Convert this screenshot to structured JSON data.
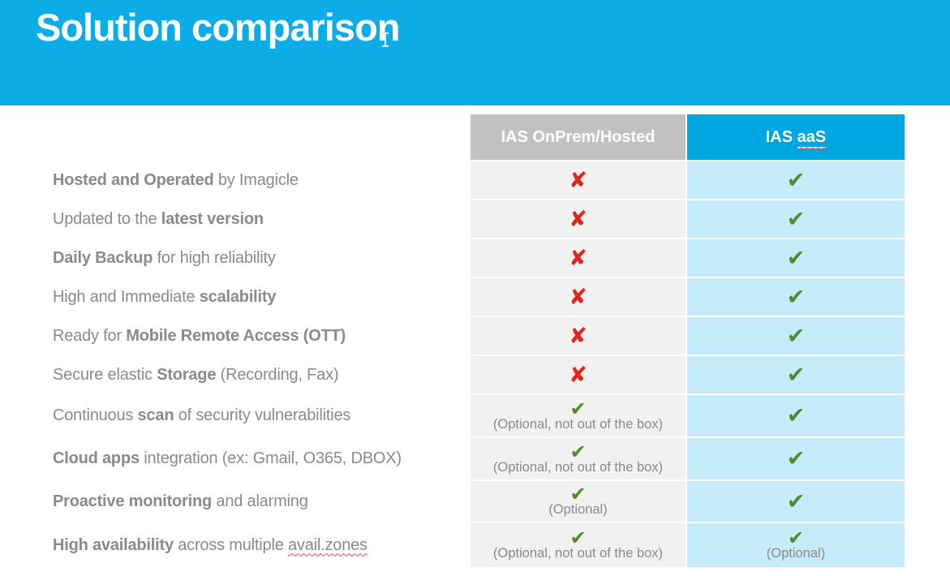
{
  "slide": {
    "title": "Solution comparison"
  },
  "colors": {
    "band_blue": "#0cace6",
    "header_blue": "#00a6df",
    "header_gray": "#c1c1c1",
    "cell_light_gray": "#f2f1f1",
    "cell_light_blue": "#c6ebfb",
    "label_gray": "#8a8a8d",
    "check_green": "#4f8c2e",
    "cross_red": "#e1251b",
    "squiggle_red": "#e8433c"
  },
  "icons": {
    "check": "✔",
    "cross": "✘"
  },
  "table": {
    "header": {
      "onprem": "IAS OnPrem/Hosted",
      "aas_prefix": "IAS ",
      "aas_underlined": "aaS"
    },
    "rows": [
      {
        "label": [
          {
            "text": "Hosted and Operated",
            "bold": true
          },
          {
            "text": " by Imagicle",
            "bold": false
          }
        ],
        "onprem": {
          "mark": "cross",
          "note": ""
        },
        "aas": {
          "mark": "check",
          "note": ""
        }
      },
      {
        "label": [
          {
            "text": "Updated to the ",
            "bold": false
          },
          {
            "text": "latest version",
            "bold": true
          }
        ],
        "onprem": {
          "mark": "cross",
          "note": ""
        },
        "aas": {
          "mark": "check",
          "note": ""
        }
      },
      {
        "label": [
          {
            "text": "Daily Backup",
            "bold": true
          },
          {
            "text": " for high reliability",
            "bold": false
          }
        ],
        "onprem": {
          "mark": "cross",
          "note": ""
        },
        "aas": {
          "mark": "check",
          "note": ""
        }
      },
      {
        "label": [
          {
            "text": "High and Immediate ",
            "bold": false
          },
          {
            "text": "scalability",
            "bold": true
          }
        ],
        "onprem": {
          "mark": "cross",
          "note": ""
        },
        "aas": {
          "mark": "check",
          "note": ""
        }
      },
      {
        "label": [
          {
            "text": "Ready for ",
            "bold": false
          },
          {
            "text": "Mobile Remote Access (OTT)",
            "bold": true
          }
        ],
        "onprem": {
          "mark": "cross",
          "note": ""
        },
        "aas": {
          "mark": "check",
          "note": ""
        }
      },
      {
        "label": [
          {
            "text": "Secure elastic ",
            "bold": false
          },
          {
            "text": "Storage",
            "bold": true
          },
          {
            "text": " (Recording, Fax)",
            "bold": false
          }
        ],
        "onprem": {
          "mark": "cross",
          "note": ""
        },
        "aas": {
          "mark": "check",
          "note": ""
        }
      },
      {
        "label": [
          {
            "text": "Continuous ",
            "bold": false
          },
          {
            "text": "scan",
            "bold": true
          },
          {
            "text": " of security vulnerabilities",
            "bold": false
          }
        ],
        "onprem": {
          "mark": "check",
          "note": "(Optional, not out of the box)"
        },
        "aas": {
          "mark": "check",
          "note": ""
        }
      },
      {
        "label": [
          {
            "text": "Cloud apps",
            "bold": true
          },
          {
            "text": " integration (ex: Gmail, O365, DBOX)",
            "bold": false
          }
        ],
        "onprem": {
          "mark": "check",
          "note": "(Optional, not out of the box)"
        },
        "aas": {
          "mark": "check",
          "note": ""
        }
      },
      {
        "label": [
          {
            "text": "Proactive monitoring",
            "bold": true
          },
          {
            "text": " and alarming",
            "bold": false
          }
        ],
        "onprem": {
          "mark": "check",
          "note": "(Optional)"
        },
        "aas": {
          "mark": "check",
          "note": ""
        }
      },
      {
        "label": [
          {
            "text": "High availability",
            "bold": true
          },
          {
            "text": " across multiple ",
            "bold": false
          },
          {
            "text": "avail.zones",
            "bold": false,
            "squiggle": true
          }
        ],
        "onprem": {
          "mark": "check",
          "note": "(Optional, not out of the box)"
        },
        "aas": {
          "mark": "check",
          "note": "(Optional)"
        }
      }
    ]
  }
}
